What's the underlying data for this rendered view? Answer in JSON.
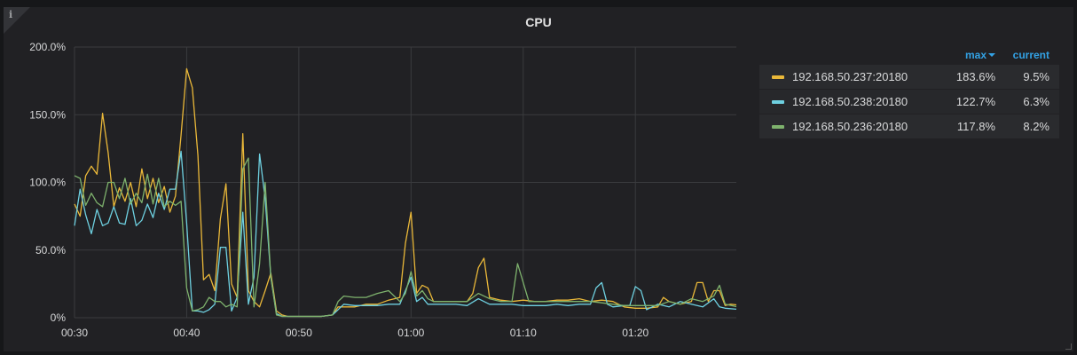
{
  "panel": {
    "title": "CPU",
    "info_icon": "info-icon"
  },
  "legend": {
    "col_max_label": "max",
    "col_current_label": "current",
    "rows": [
      {
        "name": "192.168.50.237:20180",
        "max": "183.6%",
        "current": "9.5%",
        "color": "#eab839"
      },
      {
        "name": "192.168.50.238:20180",
        "max": "122.7%",
        "current": "6.3%",
        "color": "#6ed0e0"
      },
      {
        "name": "192.168.50.236:20180",
        "max": "117.8%",
        "current": "8.2%",
        "color": "#7eb26d"
      }
    ]
  },
  "chart_data": {
    "type": "line",
    "title": "CPU",
    "xlabel": "",
    "ylabel": "",
    "ylim": [
      0,
      200
    ],
    "yticks": [
      "0%",
      "50.0%",
      "100.0%",
      "150.0%",
      "200.0%"
    ],
    "ytick_values": [
      0,
      50,
      100,
      150,
      200
    ],
    "xlim": [
      "00:30",
      "01:29"
    ],
    "xticks": [
      "00:30",
      "00:40",
      "00:50",
      "01:00",
      "01:10",
      "01:20"
    ],
    "grid": true,
    "legend_position": "right",
    "x_minutes_from_first": "00:30",
    "series": [
      {
        "name": "192.168.50.237:20180",
        "color": "#eab839",
        "points": [
          [
            "00:30:00",
            84
          ],
          [
            "00:30:30",
            75
          ],
          [
            "00:31:00",
            105
          ],
          [
            "00:31:30",
            112
          ],
          [
            "00:32:00",
            106
          ],
          [
            "00:32:30",
            151
          ],
          [
            "00:33:00",
            122
          ],
          [
            "00:33:30",
            82
          ],
          [
            "00:34:00",
            96
          ],
          [
            "00:34:30",
            86
          ],
          [
            "00:35:00",
            100
          ],
          [
            "00:35:30",
            82
          ],
          [
            "00:36:00",
            110
          ],
          [
            "00:36:30",
            88
          ],
          [
            "00:37:00",
            103
          ],
          [
            "00:37:30",
            85
          ],
          [
            "00:38:00",
            97
          ],
          [
            "00:38:30",
            78
          ],
          [
            "00:39:00",
            90
          ],
          [
            "00:39:30",
            135
          ],
          [
            "00:40:00",
            184
          ],
          [
            "00:40:30",
            170
          ],
          [
            "00:41:00",
            120
          ],
          [
            "00:41:30",
            28
          ],
          [
            "00:42:00",
            32
          ],
          [
            "00:42:30",
            20
          ],
          [
            "00:43:00",
            73
          ],
          [
            "00:43:30",
            99
          ],
          [
            "00:44:00",
            25
          ],
          [
            "00:44:30",
            15
          ],
          [
            "00:45:00",
            136
          ],
          [
            "00:45:30",
            20
          ],
          [
            "00:46:00",
            12
          ],
          [
            "00:46:30",
            8
          ],
          [
            "00:47:00",
            20
          ],
          [
            "00:47:30",
            33
          ],
          [
            "00:48:00",
            5
          ],
          [
            "00:48:30",
            2
          ],
          [
            "00:49:00",
            1
          ],
          [
            "00:50:00",
            1
          ],
          [
            "00:51:00",
            1
          ],
          [
            "00:52:00",
            1
          ],
          [
            "00:53:00",
            2
          ],
          [
            "00:53:30",
            8
          ],
          [
            "00:54:00",
            8
          ],
          [
            "00:55:00",
            8
          ],
          [
            "00:56:00",
            10
          ],
          [
            "00:57:00",
            10
          ],
          [
            "00:58:00",
            13
          ],
          [
            "00:59:00",
            15
          ],
          [
            "00:59:30",
            55
          ],
          [
            "01:00:00",
            78
          ],
          [
            "01:00:30",
            18
          ],
          [
            "01:01:00",
            24
          ],
          [
            "01:01:30",
            22
          ],
          [
            "01:02:00",
            12
          ],
          [
            "01:03:00",
            12
          ],
          [
            "01:04:00",
            12
          ],
          [
            "01:05:00",
            12
          ],
          [
            "01:05:30",
            18
          ],
          [
            "01:06:00",
            37
          ],
          [
            "01:06:30",
            44
          ],
          [
            "01:07:00",
            15
          ],
          [
            "01:08:00",
            13
          ],
          [
            "01:09:00",
            12
          ],
          [
            "01:10:00",
            13
          ],
          [
            "01:11:00",
            12
          ],
          [
            "01:12:00",
            12
          ],
          [
            "01:13:00",
            13
          ],
          [
            "01:14:00",
            13
          ],
          [
            "01:15:00",
            14
          ],
          [
            "01:16:00",
            12
          ],
          [
            "01:17:00",
            13
          ],
          [
            "01:18:00",
            12
          ],
          [
            "01:18:30",
            10
          ],
          [
            "01:19:00",
            8
          ],
          [
            "01:20:00",
            7
          ],
          [
            "01:21:00",
            7
          ],
          [
            "01:22:00",
            8
          ],
          [
            "01:22:30",
            15
          ],
          [
            "01:23:00",
            12
          ],
          [
            "01:24:00",
            10
          ],
          [
            "01:25:00",
            12
          ],
          [
            "01:25:30",
            26
          ],
          [
            "01:26:00",
            26
          ],
          [
            "01:26:30",
            12
          ],
          [
            "01:27:00",
            20
          ],
          [
            "01:27:30",
            20
          ],
          [
            "01:28:00",
            9
          ],
          [
            "01:28:30",
            10
          ],
          [
            "01:29:00",
            9.5
          ]
        ]
      },
      {
        "name": "192.168.50.238:20180",
        "color": "#6ed0e0",
        "points": [
          [
            "00:30:00",
            68
          ],
          [
            "00:30:30",
            95
          ],
          [
            "00:31:00",
            76
          ],
          [
            "00:31:30",
            62
          ],
          [
            "00:32:00",
            80
          ],
          [
            "00:32:30",
            68
          ],
          [
            "00:33:00",
            70
          ],
          [
            "00:33:30",
            82
          ],
          [
            "00:34:00",
            70
          ],
          [
            "00:34:30",
            69
          ],
          [
            "00:35:00",
            88
          ],
          [
            "00:35:30",
            68
          ],
          [
            "00:36:00",
            72
          ],
          [
            "00:36:30",
            84
          ],
          [
            "00:37:00",
            74
          ],
          [
            "00:37:30",
            92
          ],
          [
            "00:38:00",
            80
          ],
          [
            "00:38:30",
            95
          ],
          [
            "00:39:00",
            95
          ],
          [
            "00:39:30",
            123
          ],
          [
            "00:40:00",
            70
          ],
          [
            "00:40:30",
            5
          ],
          [
            "00:41:00",
            5
          ],
          [
            "00:41:30",
            4
          ],
          [
            "00:42:00",
            6
          ],
          [
            "00:42:30",
            10
          ],
          [
            "00:43:00",
            52
          ],
          [
            "00:43:30",
            52
          ],
          [
            "00:44:00",
            5
          ],
          [
            "00:44:30",
            15
          ],
          [
            "00:45:00",
            78
          ],
          [
            "00:45:30",
            10
          ],
          [
            "00:46:00",
            30
          ],
          [
            "00:46:30",
            121
          ],
          [
            "00:47:00",
            88
          ],
          [
            "00:47:30",
            30
          ],
          [
            "00:48:00",
            3
          ],
          [
            "00:48:30",
            1
          ],
          [
            "00:49:00",
            1
          ],
          [
            "00:50:00",
            1
          ],
          [
            "00:51:00",
            1
          ],
          [
            "00:52:00",
            1
          ],
          [
            "00:53:00",
            2
          ],
          [
            "00:54:00",
            10
          ],
          [
            "00:55:00",
            9
          ],
          [
            "00:56:00",
            9
          ],
          [
            "00:57:00",
            9
          ],
          [
            "00:58:00",
            10
          ],
          [
            "00:59:00",
            10
          ],
          [
            "00:59:30",
            20
          ],
          [
            "01:00:00",
            30
          ],
          [
            "01:00:30",
            12
          ],
          [
            "01:01:00",
            15
          ],
          [
            "01:01:30",
            10
          ],
          [
            "01:02:00",
            10
          ],
          [
            "01:03:00",
            10
          ],
          [
            "01:04:00",
            10
          ],
          [
            "01:05:00",
            9
          ],
          [
            "01:06:00",
            14
          ],
          [
            "01:07:00",
            10
          ],
          [
            "01:08:00",
            10
          ],
          [
            "01:09:00",
            10
          ],
          [
            "01:10:00",
            9
          ],
          [
            "01:11:00",
            9
          ],
          [
            "01:12:00",
            9
          ],
          [
            "01:13:00",
            10
          ],
          [
            "01:14:00",
            9
          ],
          [
            "01:15:00",
            10
          ],
          [
            "01:16:00",
            10
          ],
          [
            "01:16:30",
            22
          ],
          [
            "01:17:00",
            26
          ],
          [
            "01:17:30",
            10
          ],
          [
            "01:18:00",
            8
          ],
          [
            "01:19:00",
            9
          ],
          [
            "01:19:30",
            9
          ],
          [
            "01:20:00",
            23
          ],
          [
            "01:20:30",
            20
          ],
          [
            "01:21:00",
            6
          ],
          [
            "01:22:00",
            10
          ],
          [
            "01:23:00",
            8
          ],
          [
            "01:24:00",
            12
          ],
          [
            "01:25:00",
            10
          ],
          [
            "01:26:00",
            8
          ],
          [
            "01:27:00",
            14
          ],
          [
            "01:27:30",
            8
          ],
          [
            "01:28:00",
            7
          ],
          [
            "01:29:00",
            6.3
          ]
        ]
      },
      {
        "name": "192.168.50.236:20180",
        "color": "#7eb26d",
        "points": [
          [
            "00:30:00",
            105
          ],
          [
            "00:30:30",
            103
          ],
          [
            "00:31:00",
            83
          ],
          [
            "00:31:30",
            92
          ],
          [
            "00:32:00",
            85
          ],
          [
            "00:32:30",
            82
          ],
          [
            "00:33:00",
            100
          ],
          [
            "00:33:30",
            100
          ],
          [
            "00:34:00",
            88
          ],
          [
            "00:34:30",
            103
          ],
          [
            "00:35:00",
            84
          ],
          [
            "00:35:30",
            92
          ],
          [
            "00:36:00",
            85
          ],
          [
            "00:36:30",
            106
          ],
          [
            "00:37:00",
            84
          ],
          [
            "00:37:30",
            103
          ],
          [
            "00:38:00",
            82
          ],
          [
            "00:38:30",
            86
          ],
          [
            "00:39:00",
            83
          ],
          [
            "00:39:30",
            86
          ],
          [
            "00:40:00",
            22
          ],
          [
            "00:40:30",
            5
          ],
          [
            "00:41:00",
            6
          ],
          [
            "00:41:30",
            8
          ],
          [
            "00:42:00",
            15
          ],
          [
            "00:42:30",
            12
          ],
          [
            "00:43:00",
            12
          ],
          [
            "00:43:30",
            8
          ],
          [
            "00:44:00",
            10
          ],
          [
            "00:44:30",
            8
          ],
          [
            "00:45:00",
            110
          ],
          [
            "00:45:30",
            118
          ],
          [
            "00:46:00",
            8
          ],
          [
            "00:46:30",
            40
          ],
          [
            "00:47:00",
            100
          ],
          [
            "00:47:30",
            30
          ],
          [
            "00:48:00",
            2
          ],
          [
            "00:48:30",
            1
          ],
          [
            "00:49:00",
            1
          ],
          [
            "00:50:00",
            1
          ],
          [
            "00:51:00",
            1
          ],
          [
            "00:52:00",
            1
          ],
          [
            "00:53:00",
            2
          ],
          [
            "00:53:30",
            12
          ],
          [
            "00:54:00",
            16
          ],
          [
            "00:55:00",
            15
          ],
          [
            "00:56:00",
            15
          ],
          [
            "00:57:00",
            18
          ],
          [
            "00:58:00",
            20
          ],
          [
            "00:59:00",
            12
          ],
          [
            "00:59:30",
            18
          ],
          [
            "01:00:00",
            34
          ],
          [
            "01:00:30",
            16
          ],
          [
            "01:01:00",
            20
          ],
          [
            "01:01:30",
            14
          ],
          [
            "01:02:00",
            12
          ],
          [
            "01:03:00",
            12
          ],
          [
            "01:04:00",
            12
          ],
          [
            "01:05:00",
            12
          ],
          [
            "01:06:00",
            18
          ],
          [
            "01:07:00",
            14
          ],
          [
            "01:08:00",
            12
          ],
          [
            "01:09:00",
            12
          ],
          [
            "01:09:30",
            40
          ],
          [
            "01:10:00",
            26
          ],
          [
            "01:10:30",
            12
          ],
          [
            "01:11:00",
            12
          ],
          [
            "01:12:00",
            12
          ],
          [
            "01:13:00",
            12
          ],
          [
            "01:14:00",
            12
          ],
          [
            "01:15:00",
            12
          ],
          [
            "01:16:00",
            12
          ],
          [
            "01:17:00",
            11
          ],
          [
            "01:18:00",
            10
          ],
          [
            "01:19:00",
            9
          ],
          [
            "01:20:00",
            9
          ],
          [
            "01:21:00",
            9
          ],
          [
            "01:22:00",
            9
          ],
          [
            "01:23:00",
            12
          ],
          [
            "01:24:00",
            10
          ],
          [
            "01:25:00",
            14
          ],
          [
            "01:26:00",
            12
          ],
          [
            "01:27:00",
            16
          ],
          [
            "01:27:30",
            24
          ],
          [
            "01:28:00",
            10
          ],
          [
            "01:29:00",
            8.2
          ]
        ]
      }
    ]
  }
}
